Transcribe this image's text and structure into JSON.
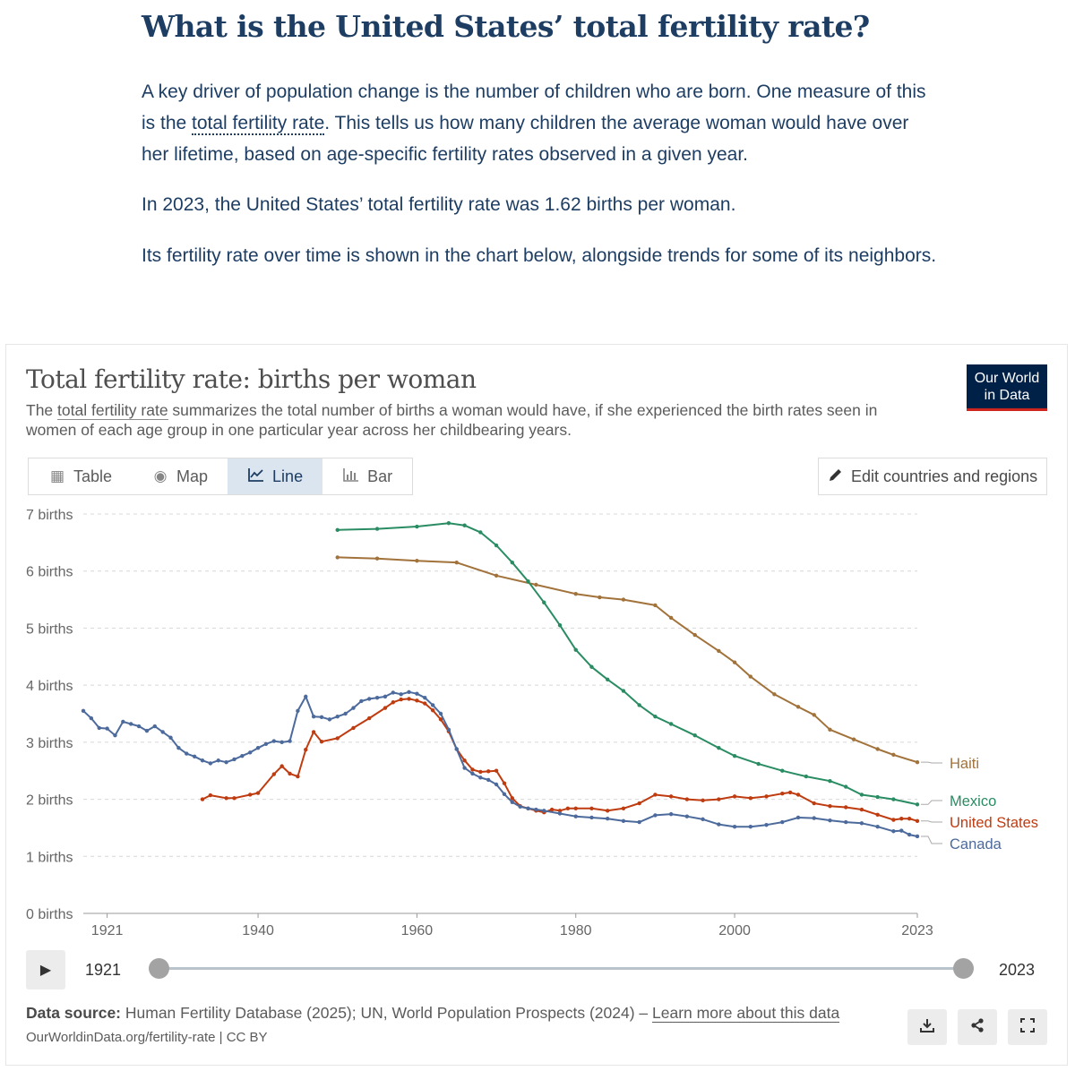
{
  "article": {
    "title": "What is the United States’ total fertility rate?",
    "p1_before": "A key driver of population change is the number of children who are born. One measure of this is the ",
    "p1_link": "total fertility rate",
    "p1_after": ". This tells us how many children the average woman would have over her lifetime, based on age-specific fertility rates observed in a given year.",
    "p2": "In 2023, the United States’ total fertility rate was 1.62 births per woman.",
    "p3": "Its fertility rate over time is shown in the chart below, alongside trends for some of its neighbors."
  },
  "panel": {
    "subtitle_before": "The ",
    "subtitle_link": "total fertility rate",
    "subtitle_after": " summarizes the total number of births a woman would have, if she experienced the birth rates seen in women of each age group in one particular year across her childbearing years.",
    "logo_line1": "Our World",
    "logo_line2": "in Data",
    "tabs": [
      {
        "label": "Table",
        "icon": "table-icon"
      },
      {
        "label": "Map",
        "icon": "globe-icon"
      },
      {
        "label": "Line",
        "icon": "line-chart-icon",
        "active": true
      },
      {
        "label": "Bar",
        "icon": "bar-chart-icon"
      }
    ],
    "edit_label": "Edit countries and regions",
    "timeline": {
      "start": "1921",
      "end": "2023"
    },
    "source_label": "Data source:",
    "source_text": " Human Fertility Database (2025); UN, World Population Prospects (2024) – ",
    "source_link": "Learn more about this data",
    "url": "OurWorldinData.org/fertility-rate | CC BY"
  },
  "chart_data": {
    "type": "line",
    "title": "Total fertility rate: births per woman",
    "ylabel": "",
    "xlabel": "",
    "ylim": [
      0,
      7
    ],
    "xlim": [
      1918,
      2023
    ],
    "y_ticks": [
      0,
      1,
      2,
      3,
      4,
      5,
      6,
      7
    ],
    "y_tick_labels": [
      "0 births",
      "1 births",
      "2 births",
      "3 births",
      "4 births",
      "5 births",
      "6 births",
      "7 births"
    ],
    "x_ticks": [
      1921,
      1940,
      1960,
      1980,
      2000,
      2023
    ],
    "grid": true,
    "legend": "end-of-line labels",
    "series": [
      {
        "name": "Haiti",
        "color": "#a2723b",
        "points": [
          [
            1950,
            6.24
          ],
          [
            1955,
            6.22
          ],
          [
            1960,
            6.18
          ],
          [
            1965,
            6.15
          ],
          [
            1970,
            5.92
          ],
          [
            1975,
            5.76
          ],
          [
            1980,
            5.6
          ],
          [
            1983,
            5.54
          ],
          [
            1986,
            5.5
          ],
          [
            1990,
            5.4
          ],
          [
            1992,
            5.18
          ],
          [
            1995,
            4.88
          ],
          [
            1998,
            4.6
          ],
          [
            2000,
            4.4
          ],
          [
            2002,
            4.15
          ],
          [
            2005,
            3.84
          ],
          [
            2008,
            3.62
          ],
          [
            2010,
            3.48
          ],
          [
            2012,
            3.22
          ],
          [
            2015,
            3.05
          ],
          [
            2018,
            2.88
          ],
          [
            2020,
            2.78
          ],
          [
            2023,
            2.65
          ]
        ]
      },
      {
        "name": "Mexico",
        "color": "#2a8c63",
        "points": [
          [
            1950,
            6.72
          ],
          [
            1955,
            6.74
          ],
          [
            1960,
            6.78
          ],
          [
            1964,
            6.84
          ],
          [
            1966,
            6.8
          ],
          [
            1968,
            6.68
          ],
          [
            1970,
            6.45
          ],
          [
            1972,
            6.15
          ],
          [
            1974,
            5.82
          ],
          [
            1976,
            5.45
          ],
          [
            1978,
            5.05
          ],
          [
            1980,
            4.62
          ],
          [
            1982,
            4.32
          ],
          [
            1984,
            4.1
          ],
          [
            1986,
            3.9
          ],
          [
            1988,
            3.65
          ],
          [
            1990,
            3.45
          ],
          [
            1992,
            3.32
          ],
          [
            1995,
            3.12
          ],
          [
            1998,
            2.9
          ],
          [
            2000,
            2.76
          ],
          [
            2003,
            2.62
          ],
          [
            2006,
            2.5
          ],
          [
            2009,
            2.4
          ],
          [
            2012,
            2.32
          ],
          [
            2014,
            2.22
          ],
          [
            2016,
            2.08
          ],
          [
            2018,
            2.04
          ],
          [
            2020,
            2.0
          ],
          [
            2023,
            1.91
          ]
        ]
      },
      {
        "name": "United States",
        "color": "#bf3b10",
        "points": [
          [
            1933,
            2.0
          ],
          [
            1934,
            2.07
          ],
          [
            1936,
            2.02
          ],
          [
            1937,
            2.02
          ],
          [
            1939,
            2.08
          ],
          [
            1940,
            2.11
          ],
          [
            1942,
            2.44
          ],
          [
            1943,
            2.58
          ],
          [
            1944,
            2.45
          ],
          [
            1945,
            2.4
          ],
          [
            1946,
            2.87
          ],
          [
            1947,
            3.18
          ],
          [
            1948,
            3.01
          ],
          [
            1950,
            3.07
          ],
          [
            1952,
            3.25
          ],
          [
            1954,
            3.42
          ],
          [
            1956,
            3.6
          ],
          [
            1957,
            3.7
          ],
          [
            1958,
            3.75
          ],
          [
            1959,
            3.76
          ],
          [
            1960,
            3.73
          ],
          [
            1961,
            3.68
          ],
          [
            1962,
            3.56
          ],
          [
            1963,
            3.4
          ],
          [
            1964,
            3.19
          ],
          [
            1965,
            2.88
          ],
          [
            1966,
            2.68
          ],
          [
            1967,
            2.52
          ],
          [
            1968,
            2.48
          ],
          [
            1969,
            2.49
          ],
          [
            1970,
            2.5
          ],
          [
            1971,
            2.28
          ],
          [
            1972,
            2.02
          ],
          [
            1973,
            1.88
          ],
          [
            1974,
            1.84
          ],
          [
            1975,
            1.8
          ],
          [
            1976,
            1.77
          ],
          [
            1977,
            1.82
          ],
          [
            1978,
            1.8
          ],
          [
            1979,
            1.84
          ],
          [
            1980,
            1.84
          ],
          [
            1982,
            1.84
          ],
          [
            1984,
            1.8
          ],
          [
            1986,
            1.84
          ],
          [
            1988,
            1.93
          ],
          [
            1990,
            2.08
          ],
          [
            1992,
            2.05
          ],
          [
            1994,
            2.0
          ],
          [
            1996,
            1.98
          ],
          [
            1998,
            2.0
          ],
          [
            2000,
            2.05
          ],
          [
            2002,
            2.02
          ],
          [
            2004,
            2.05
          ],
          [
            2006,
            2.1
          ],
          [
            2007,
            2.12
          ],
          [
            2008,
            2.08
          ],
          [
            2010,
            1.93
          ],
          [
            2012,
            1.88
          ],
          [
            2014,
            1.86
          ],
          [
            2016,
            1.82
          ],
          [
            2018,
            1.73
          ],
          [
            2020,
            1.64
          ],
          [
            2021,
            1.66
          ],
          [
            2022,
            1.66
          ],
          [
            2023,
            1.62
          ]
        ]
      },
      {
        "name": "Canada",
        "color": "#4c6a9c",
        "points": [
          [
            1918,
            3.55
          ],
          [
            1919,
            3.42
          ],
          [
            1920,
            3.25
          ],
          [
            1921,
            3.24
          ],
          [
            1922,
            3.12
          ],
          [
            1923,
            3.36
          ],
          [
            1924,
            3.32
          ],
          [
            1925,
            3.28
          ],
          [
            1926,
            3.2
          ],
          [
            1927,
            3.28
          ],
          [
            1928,
            3.18
          ],
          [
            1929,
            3.08
          ],
          [
            1930,
            2.9
          ],
          [
            1931,
            2.8
          ],
          [
            1932,
            2.75
          ],
          [
            1933,
            2.68
          ],
          [
            1934,
            2.63
          ],
          [
            1935,
            2.68
          ],
          [
            1936,
            2.65
          ],
          [
            1937,
            2.7
          ],
          [
            1938,
            2.76
          ],
          [
            1939,
            2.82
          ],
          [
            1940,
            2.9
          ],
          [
            1941,
            2.97
          ],
          [
            1942,
            3.02
          ],
          [
            1943,
            3.0
          ],
          [
            1944,
            3.02
          ],
          [
            1945,
            3.55
          ],
          [
            1946,
            3.8
          ],
          [
            1947,
            3.45
          ],
          [
            1948,
            3.44
          ],
          [
            1949,
            3.4
          ],
          [
            1950,
            3.45
          ],
          [
            1951,
            3.5
          ],
          [
            1952,
            3.6
          ],
          [
            1953,
            3.72
          ],
          [
            1954,
            3.76
          ],
          [
            1955,
            3.78
          ],
          [
            1956,
            3.8
          ],
          [
            1957,
            3.87
          ],
          [
            1958,
            3.84
          ],
          [
            1959,
            3.88
          ],
          [
            1960,
            3.85
          ],
          [
            1961,
            3.78
          ],
          [
            1962,
            3.65
          ],
          [
            1963,
            3.5
          ],
          [
            1964,
            3.22
          ],
          [
            1965,
            2.88
          ],
          [
            1966,
            2.55
          ],
          [
            1967,
            2.45
          ],
          [
            1968,
            2.38
          ],
          [
            1969,
            2.34
          ],
          [
            1970,
            2.26
          ],
          [
            1971,
            2.09
          ],
          [
            1972,
            1.95
          ],
          [
            1973,
            1.87
          ],
          [
            1974,
            1.84
          ],
          [
            1975,
            1.82
          ],
          [
            1976,
            1.8
          ],
          [
            1978,
            1.75
          ],
          [
            1980,
            1.7
          ],
          [
            1982,
            1.68
          ],
          [
            1984,
            1.66
          ],
          [
            1986,
            1.62
          ],
          [
            1988,
            1.6
          ],
          [
            1990,
            1.72
          ],
          [
            1992,
            1.74
          ],
          [
            1994,
            1.7
          ],
          [
            1996,
            1.65
          ],
          [
            1998,
            1.56
          ],
          [
            2000,
            1.52
          ],
          [
            2002,
            1.52
          ],
          [
            2004,
            1.55
          ],
          [
            2006,
            1.6
          ],
          [
            2008,
            1.68
          ],
          [
            2010,
            1.67
          ],
          [
            2012,
            1.63
          ],
          [
            2014,
            1.6
          ],
          [
            2016,
            1.58
          ],
          [
            2018,
            1.52
          ],
          [
            2020,
            1.44
          ],
          [
            2021,
            1.45
          ],
          [
            2022,
            1.38
          ],
          [
            2023,
            1.35
          ]
        ]
      }
    ]
  }
}
